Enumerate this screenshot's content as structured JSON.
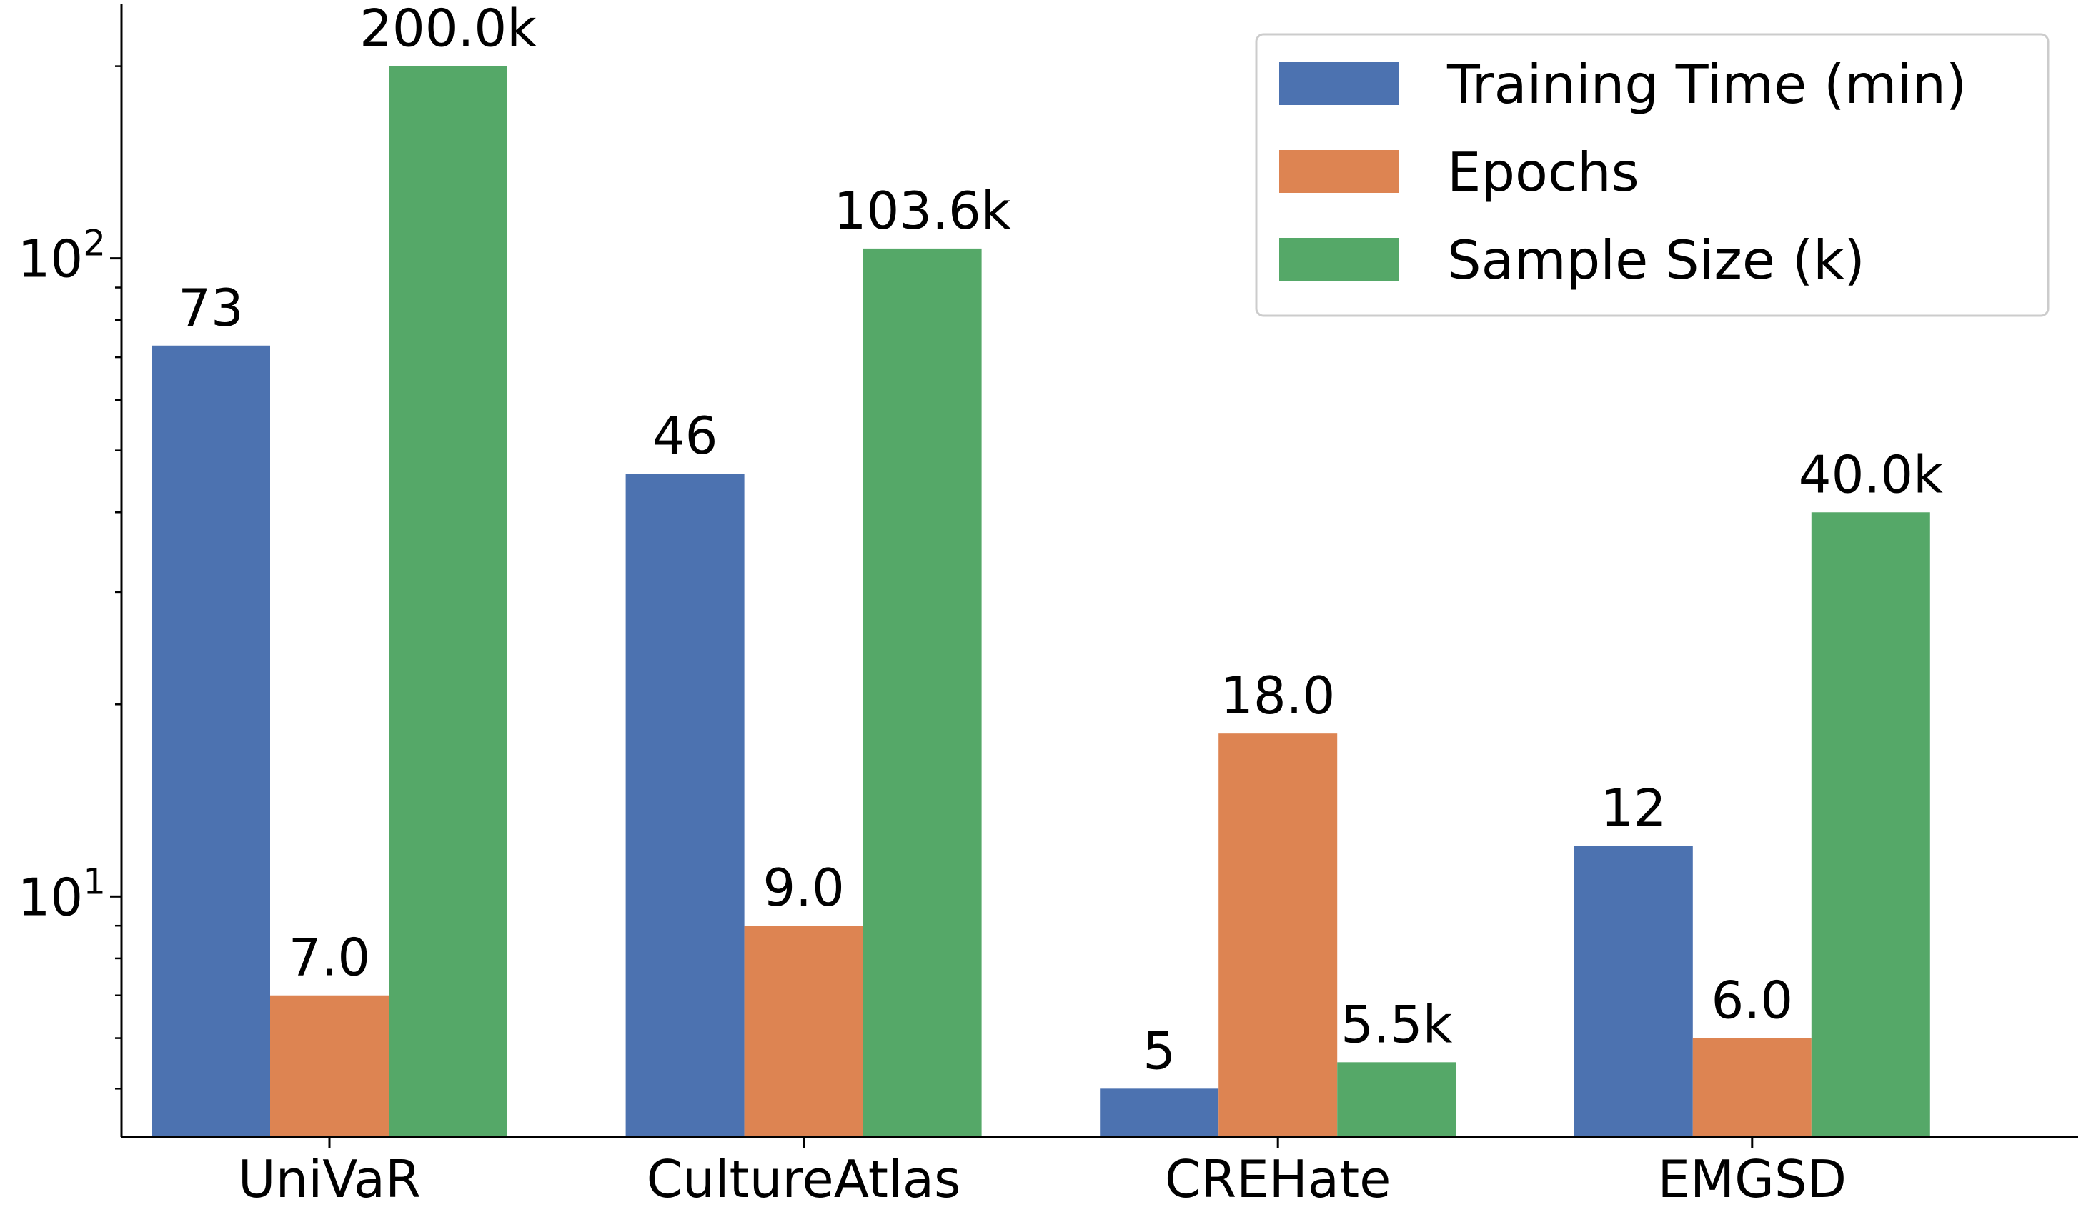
{
  "chart_data": {
    "type": "bar",
    "yscale": "log",
    "ylim": [
      4.2,
      250
    ],
    "categories": [
      "UniVaR",
      "CultureAtlas",
      "CREHate",
      "EMGSD"
    ],
    "series": [
      {
        "name": "Training Time (min)",
        "color": "#4c72b0",
        "values": [
          73,
          46,
          5,
          12
        ],
        "labels": [
          "73",
          "46",
          "5",
          "12"
        ]
      },
      {
        "name": "Epochs",
        "color": "#dd8452",
        "values": [
          7.0,
          9.0,
          18.0,
          6.0
        ],
        "labels": [
          "7.0",
          "9.0",
          "18.0",
          "6.0"
        ]
      },
      {
        "name": "Sample Size (k)",
        "color": "#55a868",
        "values": [
          200.0,
          103.6,
          5.5,
          40.0
        ],
        "labels": [
          "200.0k",
          "103.6k",
          "5.5k",
          "40.0k"
        ]
      }
    ],
    "yticks": [
      {
        "value": 10,
        "base": "10",
        "exp": "1"
      },
      {
        "value": 100,
        "base": "10",
        "exp": "2"
      }
    ],
    "minor_yticks": [
      5,
      6,
      7,
      8,
      9,
      20,
      30,
      40,
      50,
      60,
      70,
      80,
      90,
      200
    ],
    "legend": {
      "location": "top-right"
    },
    "title": "",
    "xlabel": "",
    "ylabel": "",
    "grid": false
  }
}
